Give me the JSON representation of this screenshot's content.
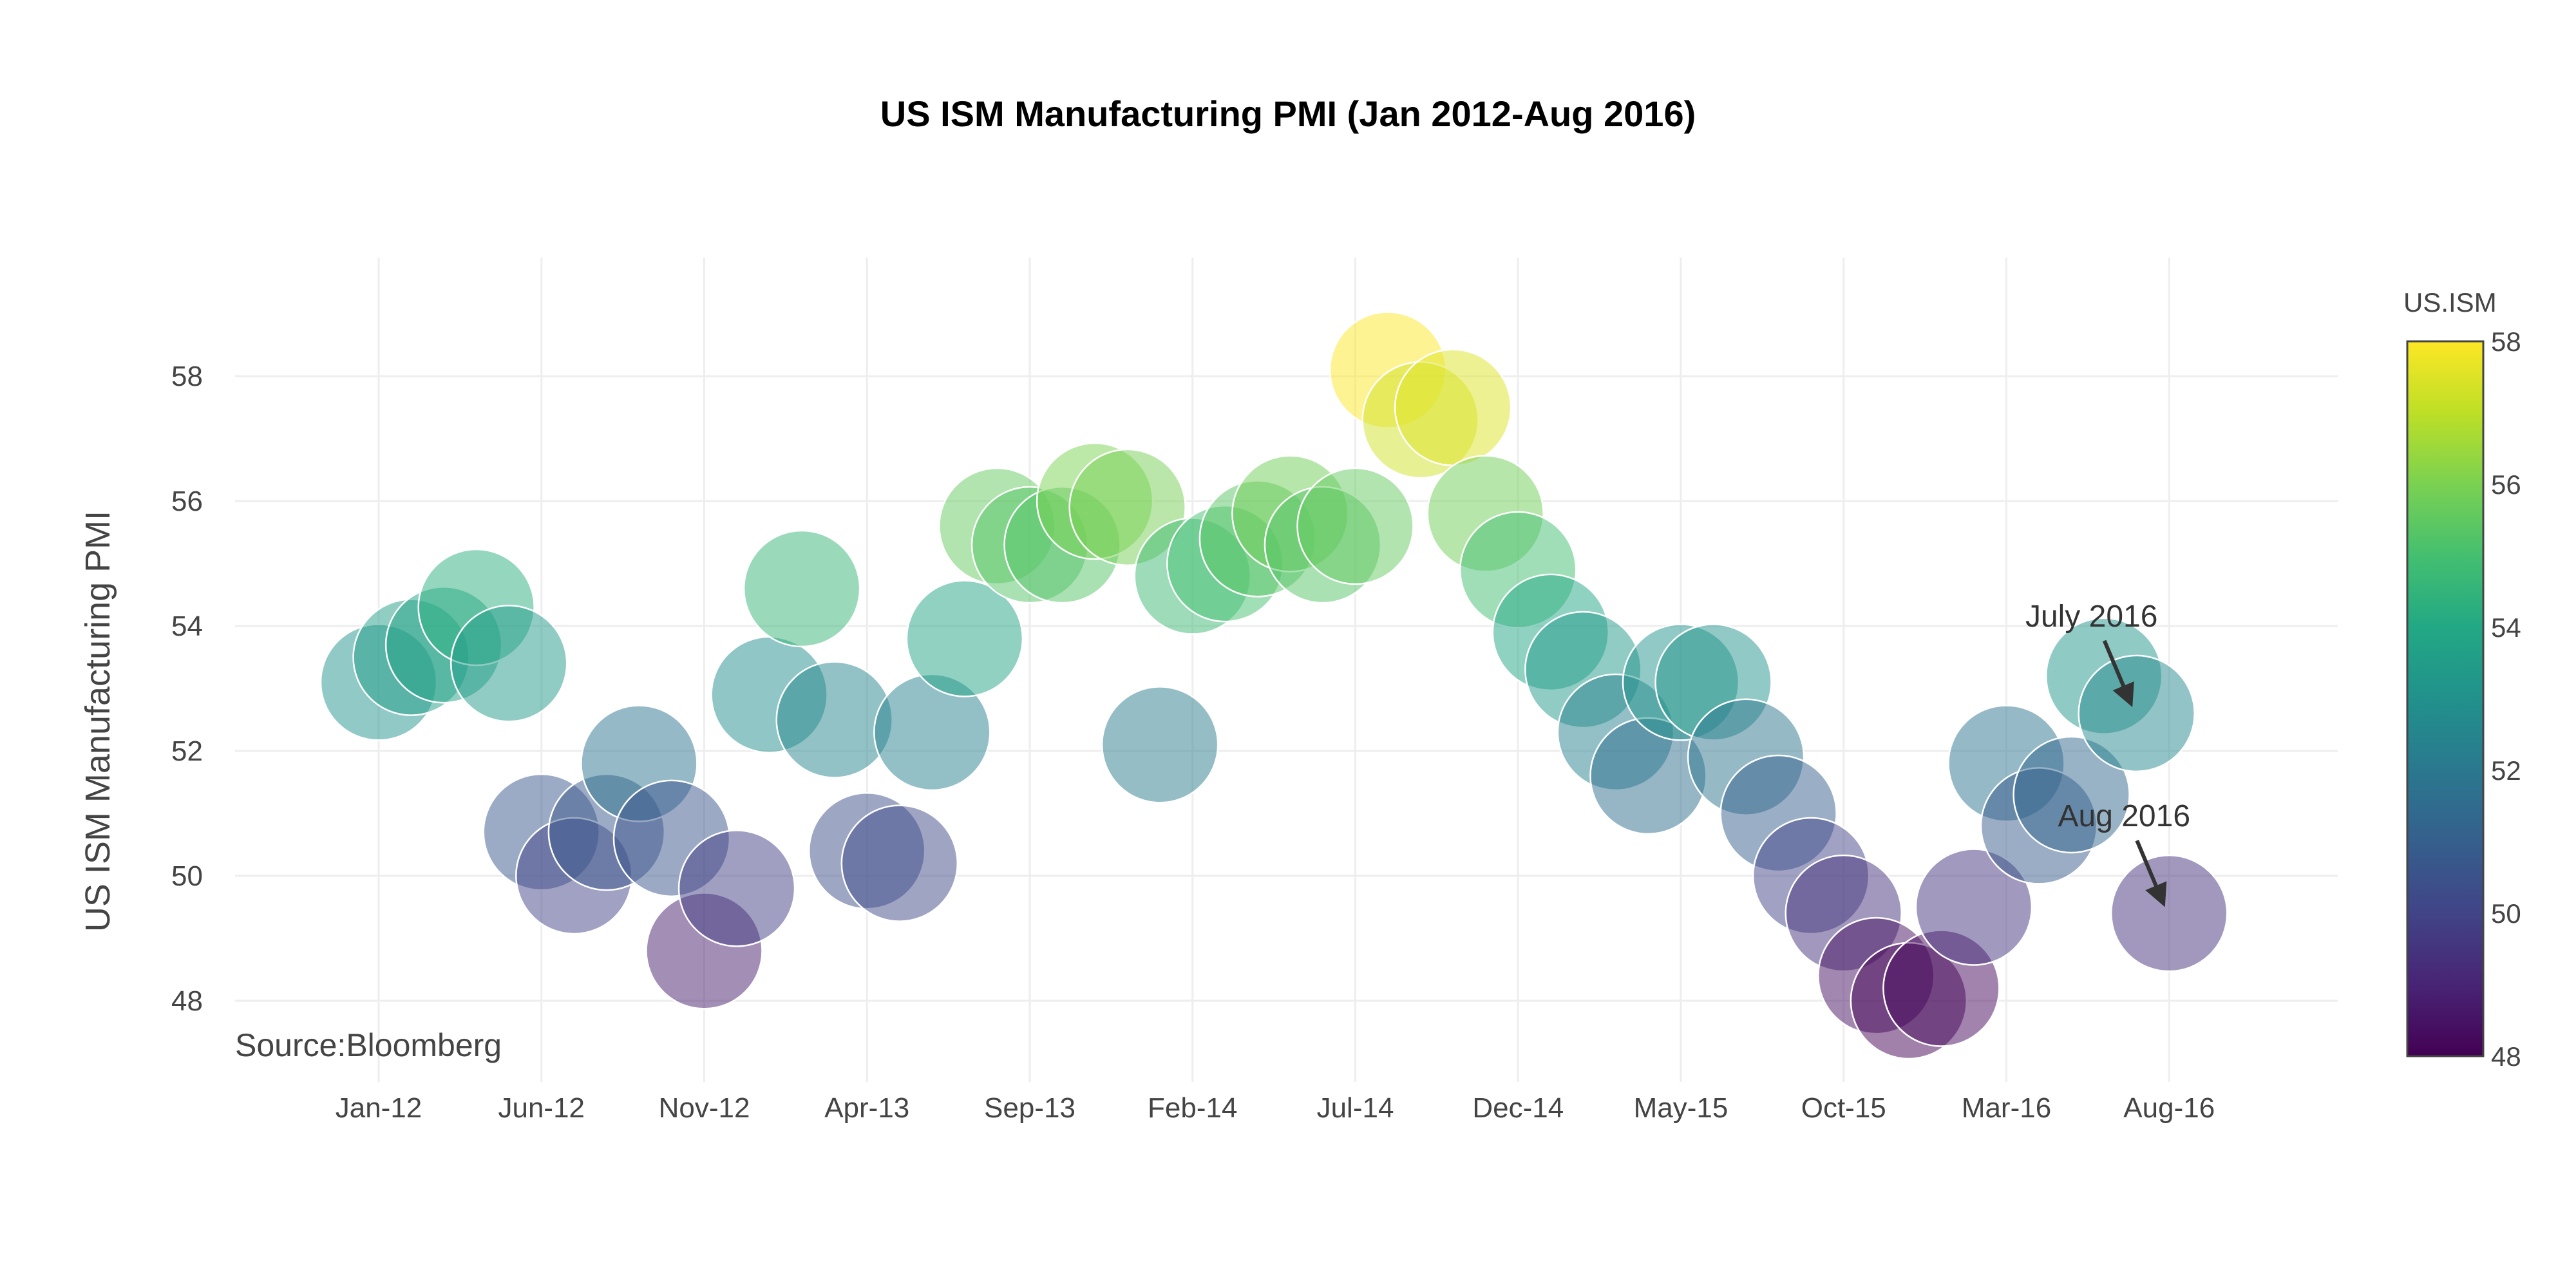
{
  "chart_data": {
    "type": "scatter",
    "title": "US ISM Manufacturing PMI (Jan 2012-Aug 2016)",
    "xlabel": "",
    "ylabel": "US ISM Manufacturing PMI",
    "x_tick_labels": [
      "Jan-12",
      "Jun-12",
      "Nov-12",
      "Apr-13",
      "Sep-13",
      "Feb-14",
      "Jul-14",
      "Dec-14",
      "May-15",
      "Oct-15",
      "Mar-16",
      "Aug-16"
    ],
    "y_ticks": [
      48,
      50,
      52,
      54,
      56,
      58
    ],
    "ylim": [
      46.7,
      59.9
    ],
    "grid": true,
    "colorscale": "viridis",
    "colorbar": {
      "title": "US.ISM",
      "min": 48,
      "max": 58,
      "ticks": [
        48,
        50,
        52,
        54,
        56,
        58
      ]
    },
    "series": [
      {
        "x": [
          "Jan-12",
          "Feb-12",
          "Mar-12",
          "Apr-12",
          "May-12",
          "Jun-12",
          "Jul-12",
          "Aug-12",
          "Sep-12",
          "Oct-12",
          "Nov-12",
          "Dec-12",
          "Jan-13",
          "Feb-13",
          "Mar-13",
          "Apr-13",
          "May-13",
          "Jun-13",
          "Jul-13",
          "Aug-13",
          "Sep-13",
          "Oct-13",
          "Nov-13",
          "Dec-13",
          "Jan-14",
          "Feb-14",
          "Mar-14",
          "Apr-14",
          "May-14",
          "Jun-14",
          "Jul-14",
          "Aug-14",
          "Sep-14",
          "Oct-14",
          "Nov-14",
          "Dec-14",
          "Jan-15",
          "Feb-15",
          "Mar-15",
          "Apr-15",
          "May-15",
          "Jun-15",
          "Jul-15",
          "Aug-15",
          "Sep-15",
          "Oct-15",
          "Nov-15",
          "Dec-15",
          "Jan-16",
          "Feb-16",
          "Mar-16",
          "Apr-16",
          "May-16",
          "Jun-16",
          "Jul-16",
          "Aug-16"
        ],
        "y": [
          53.1,
          53.5,
          53.7,
          54.3,
          53.4,
          50.7,
          50.0,
          50.7,
          51.8,
          50.6,
          48.8,
          49.8,
          52.9,
          54.6,
          52.5,
          50.4,
          50.2,
          52.3,
          53.8,
          55.6,
          55.3,
          55.3,
          56.0,
          55.9,
          52.1,
          54.8,
          55.0,
          55.4,
          55.8,
          55.3,
          55.6,
          58.1,
          57.3,
          57.5,
          55.8,
          54.9,
          53.9,
          53.3,
          52.3,
          51.6,
          53.1,
          53.1,
          51.9,
          51.0,
          50.0,
          49.4,
          48.4,
          48.0,
          48.2,
          49.5,
          51.8,
          50.8,
          51.3,
          53.2,
          52.6,
          49.4
        ]
      }
    ],
    "annotations": [
      {
        "text": "July 2016",
        "x": "Jul-16",
        "y": 52.6
      },
      {
        "text": "Aug 2016",
        "x": "Aug-16",
        "y": 49.4
      }
    ],
    "source_note": "Source:Bloomberg"
  }
}
